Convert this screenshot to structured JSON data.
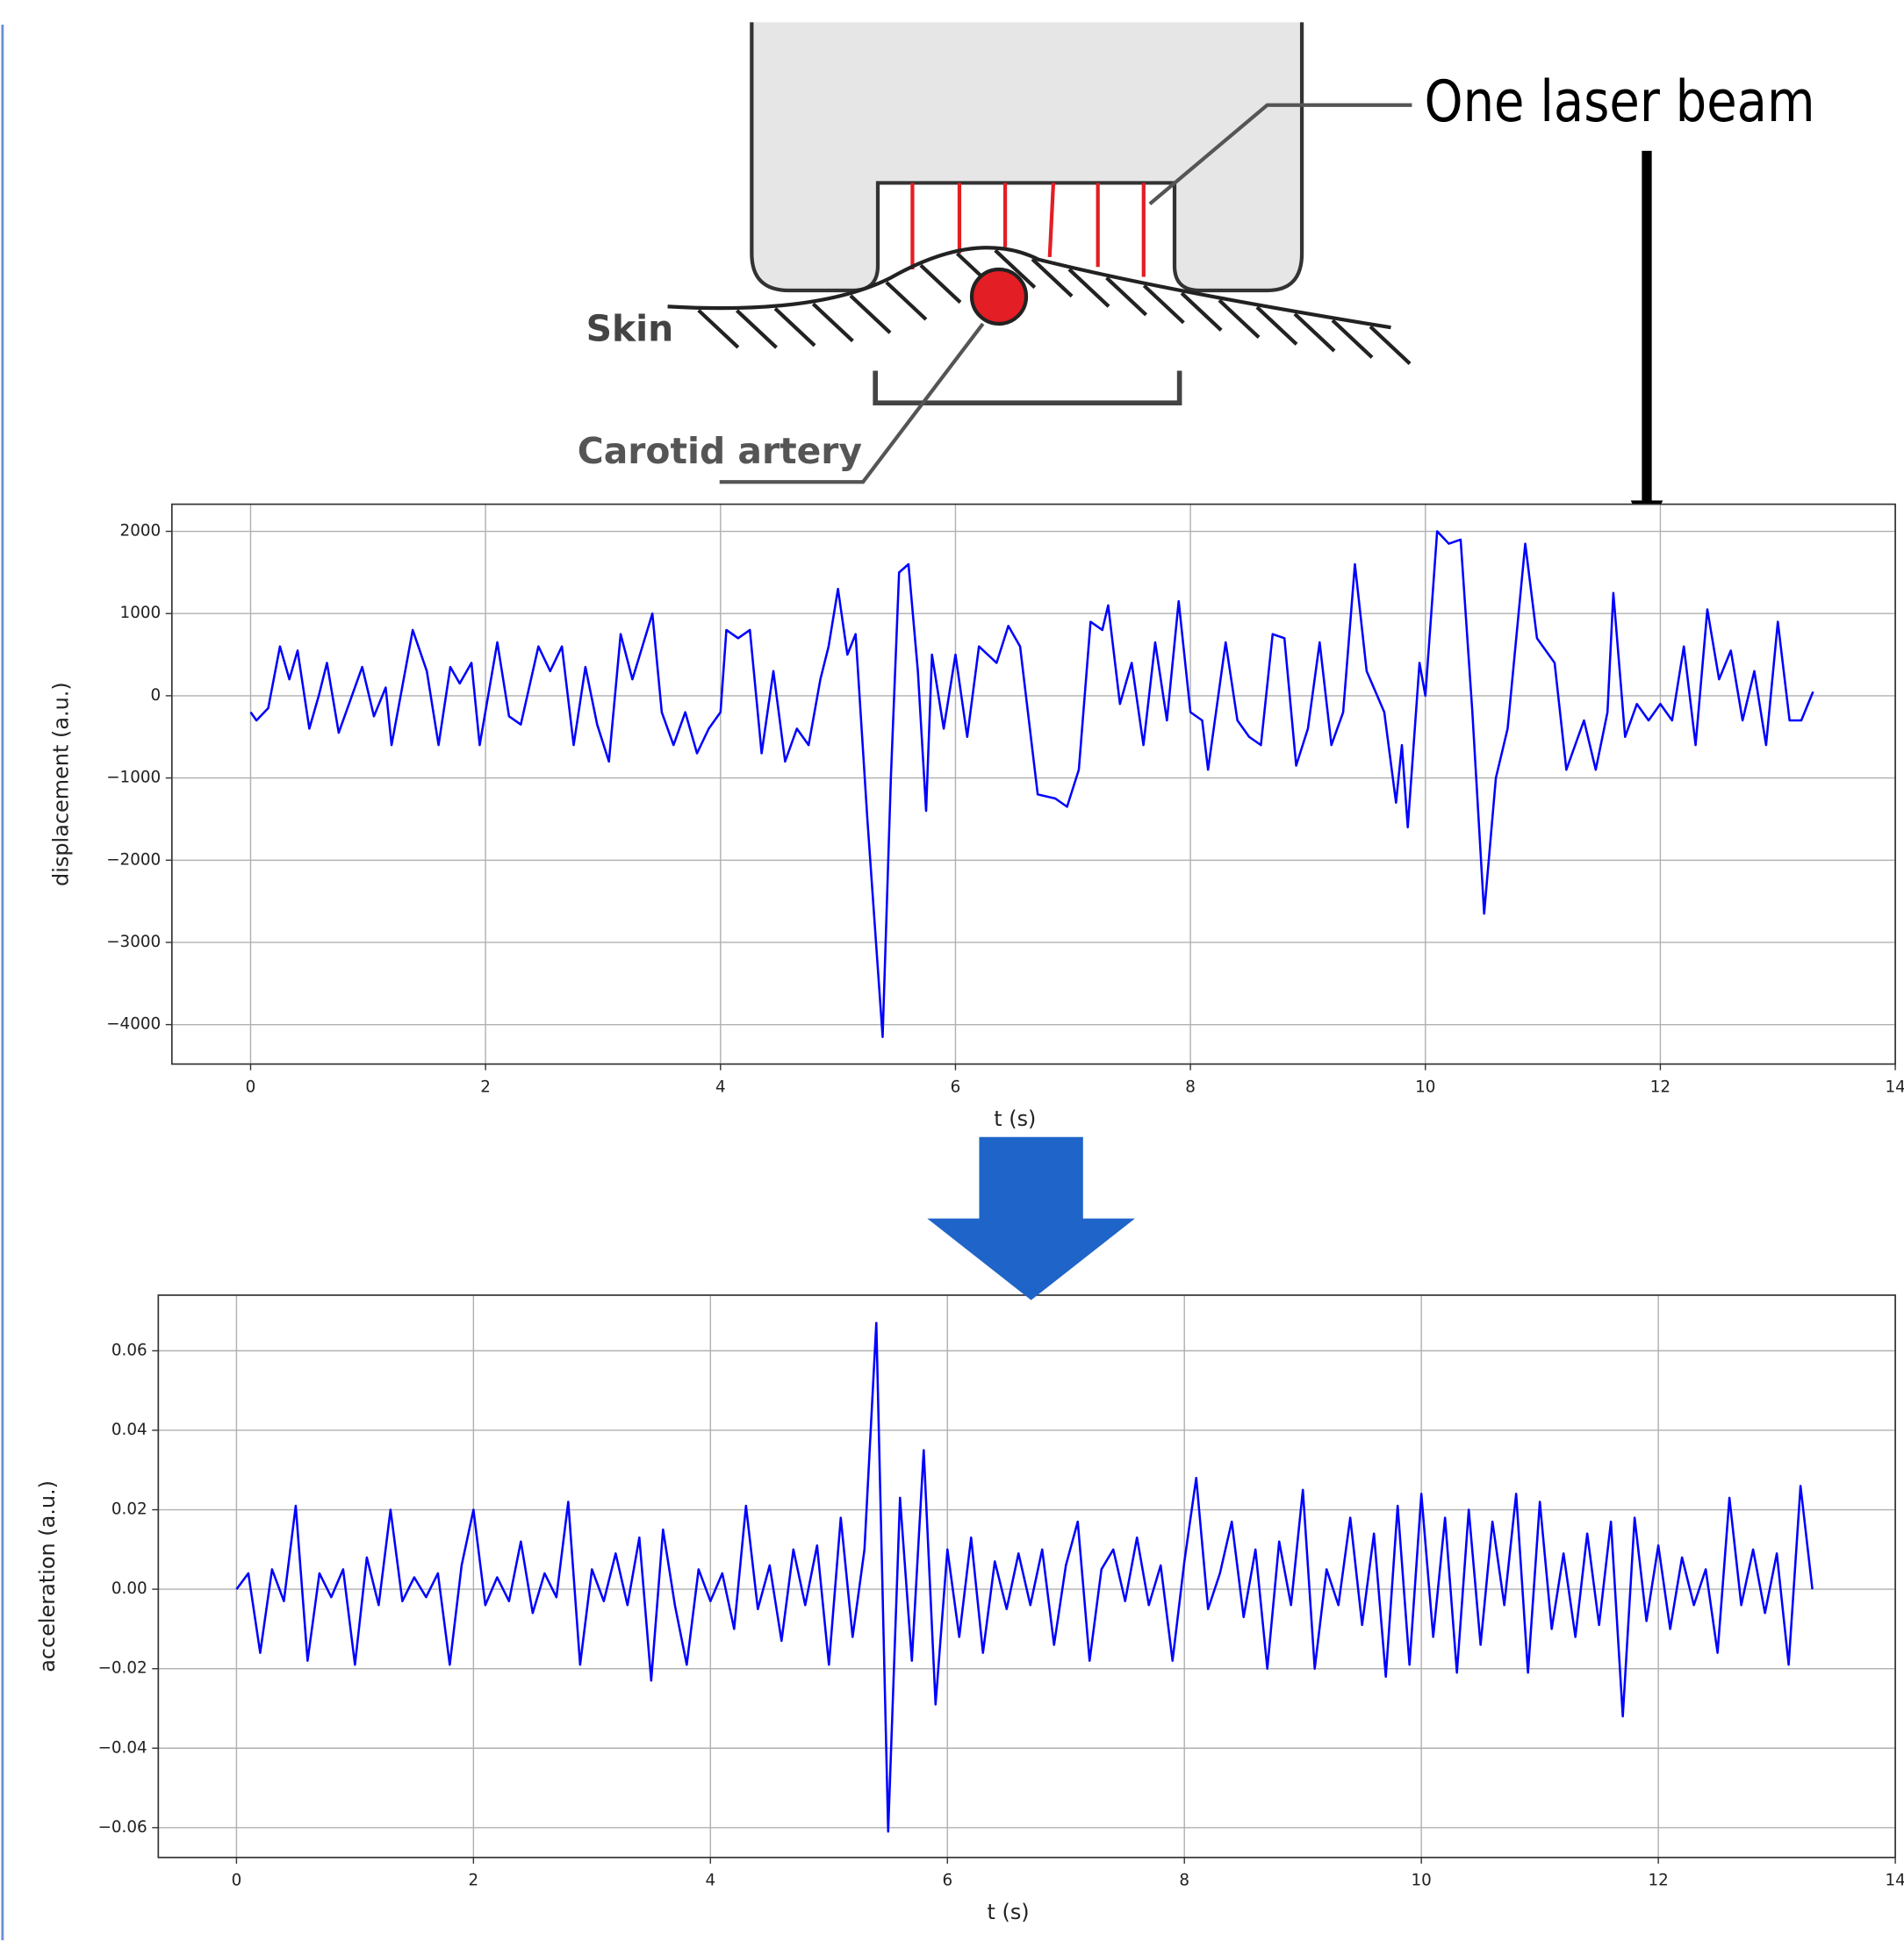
{
  "diagram": {
    "laser_label": "One laser beam",
    "skin_label": "Skin",
    "artery_label": "Carotid artery"
  },
  "chart_data": [
    {
      "type": "line",
      "xlabel": "t (s)",
      "ylabel": "displacement (a.u.)",
      "color": "#0000ff",
      "grid": true,
      "xlim": [
        -0.67,
        14
      ],
      "ylim": [
        -4480,
        2330
      ],
      "xticks": [
        0,
        2,
        4,
        6,
        8,
        10,
        12,
        14
      ],
      "yticks": [
        2000,
        1000,
        0,
        {
          "value": -1000,
          "label": "−1000"
        },
        {
          "value": -2000,
          "label": "−2000"
        },
        {
          "value": -3000,
          "label": "−3000"
        },
        {
          "value": -4000,
          "label": "−4000"
        }
      ],
      "x": [
        0,
        0.05,
        0.15,
        0.25,
        0.33,
        0.4,
        0.5,
        0.58,
        0.65,
        0.75,
        0.85,
        0.95,
        1.05,
        1.15,
        1.2,
        1.38,
        1.5,
        1.6,
        1.7,
        1.78,
        1.88,
        1.95,
        2.1,
        2.2,
        2.3,
        2.45,
        2.55,
        2.65,
        2.75,
        2.85,
        2.95,
        3.05,
        3.15,
        3.25,
        3.42,
        3.5,
        3.6,
        3.7,
        3.8,
        3.9,
        4.0,
        4.05,
        4.15,
        4.25,
        4.35,
        4.45,
        4.55,
        4.65,
        4.75,
        4.85,
        4.92,
        5.0,
        5.08,
        5.15,
        5.25,
        5.38,
        5.45,
        5.52,
        5.6,
        5.68,
        5.75,
        5.8,
        5.9,
        6.0,
        6.1,
        6.2,
        6.35,
        6.45,
        6.55,
        6.7,
        6.85,
        6.95,
        7.05,
        7.15,
        7.25,
        7.3,
        7.4,
        7.5,
        7.6,
        7.7,
        7.8,
        7.9,
        8.0,
        8.1,
        8.15,
        8.3,
        8.4,
        8.5,
        8.6,
        8.7,
        8.8,
        8.9,
        9.0,
        9.1,
        9.2,
        9.3,
        9.4,
        9.5,
        9.65,
        9.75,
        9.8,
        9.85,
        9.95,
        10.0,
        10.1,
        10.2,
        10.3,
        10.4,
        10.5,
        10.6,
        10.7,
        10.85,
        10.95,
        11.1,
        11.2,
        11.3,
        11.35,
        11.45,
        11.55,
        11.6,
        11.7,
        11.8,
        11.9,
        12.0,
        12.1,
        12.2,
        12.3,
        12.4,
        12.5,
        12.6,
        12.7,
        12.8,
        12.9,
        13.0,
        13.1,
        13.2,
        13.3
      ],
      "values": [
        -200,
        -300,
        -150,
        600,
        200,
        550,
        -400,
        0,
        400,
        -450,
        -50,
        350,
        -250,
        100,
        -600,
        800,
        300,
        -600,
        350,
        150,
        400,
        -600,
        650,
        -250,
        -350,
        600,
        300,
        600,
        -600,
        350,
        -350,
        -800,
        750,
        200,
        1000,
        -200,
        -600,
        -200,
        -700,
        -400,
        -200,
        800,
        700,
        800,
        -700,
        300,
        -800,
        -400,
        -600,
        200,
        600,
        1300,
        500,
        750,
        -1500,
        -4150,
        -1000,
        1500,
        1600,
        300,
        -1400,
        500,
        -400,
        500,
        -500,
        600,
        400,
        850,
        600,
        -1200,
        -1250,
        -1350,
        -900,
        900,
        800,
        1100,
        -100,
        400,
        -600,
        650,
        -300,
        1150,
        -200,
        -300,
        -900,
        650,
        -300,
        -500,
        -600,
        750,
        700,
        -850,
        -400,
        650,
        -600,
        -200,
        1600,
        300,
        -200,
        -1300,
        -600,
        -1600,
        400,
        0,
        2000,
        1850,
        1900,
        -200,
        -2650,
        -1000,
        -400,
        1850,
        700,
        400,
        -900,
        -500,
        -300,
        -900,
        -200,
        1250,
        -500,
        -100,
        -300,
        -100,
        -300,
        600,
        -600,
        1050,
        200,
        550,
        -300,
        300,
        -600,
        900,
        -300,
        -300,
        50
      ]
    },
    {
      "type": "line",
      "xlabel": "t (s)",
      "ylabel": "acceleration (a.u.)",
      "color": "#0000ff",
      "grid": true,
      "xlim": [
        -0.66,
        14
      ],
      "ylim": [
        -0.0675,
        0.074
      ],
      "xticks": [
        0,
        2,
        4,
        6,
        8,
        10,
        12,
        14
      ],
      "yticks": [
        0.06,
        0.04,
        0.02,
        {
          "value": 0,
          "label": "0.00"
        },
        {
          "value": -0.02,
          "label": "−0.02"
        },
        {
          "value": -0.04,
          "label": "−0.04"
        },
        {
          "value": -0.06,
          "label": "−0.06"
        }
      ],
      "x": [
        0,
        0.1,
        0.2,
        0.3,
        0.4,
        0.5,
        0.6,
        0.7,
        0.8,
        0.9,
        1.0,
        1.1,
        1.2,
        1.3,
        1.4,
        1.5,
        1.6,
        1.7,
        1.8,
        1.9,
        2.0,
        2.1,
        2.2,
        2.3,
        2.4,
        2.5,
        2.6,
        2.7,
        2.8,
        2.9,
        3.0,
        3.1,
        3.2,
        3.3,
        3.4,
        3.5,
        3.6,
        3.7,
        3.8,
        3.9,
        4.0,
        4.1,
        4.2,
        4.3,
        4.4,
        4.5,
        4.6,
        4.7,
        4.8,
        4.9,
        5.0,
        5.1,
        5.2,
        5.3,
        5.4,
        5.5,
        5.6,
        5.7,
        5.8,
        5.9,
        6.0,
        6.1,
        6.2,
        6.3,
        6.4,
        6.5,
        6.6,
        6.7,
        6.8,
        6.9,
        7.0,
        7.1,
        7.2,
        7.3,
        7.4,
        7.5,
        7.6,
        7.7,
        7.8,
        7.9,
        8.0,
        8.1,
        8.2,
        8.3,
        8.4,
        8.5,
        8.6,
        8.7,
        8.8,
        8.9,
        9.0,
        9.1,
        9.2,
        9.3,
        9.4,
        9.5,
        9.6,
        9.7,
        9.8,
        9.9,
        10.0,
        10.1,
        10.2,
        10.3,
        10.4,
        10.5,
        10.6,
        10.7,
        10.8,
        10.9,
        11.0,
        11.1,
        11.2,
        11.3,
        11.4,
        11.5,
        11.6,
        11.7,
        11.8,
        11.9,
        12.0,
        12.1,
        12.2,
        12.3,
        12.4,
        12.5,
        12.6,
        12.7,
        12.8,
        12.9,
        13.0,
        13.1,
        13.2,
        13.3
      ],
      "values": [
        0,
        0.004,
        -0.016,
        0.005,
        -0.003,
        0.021,
        -0.018,
        0.004,
        -0.002,
        0.005,
        -0.019,
        0.008,
        -0.004,
        0.02,
        -0.003,
        0.003,
        -0.002,
        0.004,
        -0.019,
        0.006,
        0.02,
        -0.004,
        0.003,
        -0.003,
        0.012,
        -0.006,
        0.004,
        -0.002,
        0.022,
        -0.019,
        0.005,
        -0.003,
        0.009,
        -0.004,
        0.013,
        -0.023,
        0.015,
        -0.004,
        -0.019,
        0.005,
        -0.003,
        0.004,
        -0.01,
        0.021,
        -0.005,
        0.006,
        -0.013,
        0.01,
        -0.004,
        0.011,
        -0.019,
        0.018,
        -0.012,
        0.01,
        0.067,
        -0.061,
        0.023,
        -0.018,
        0.035,
        -0.029,
        0.01,
        -0.012,
        0.013,
        -0.016,
        0.007,
        -0.005,
        0.009,
        -0.004,
        0.01,
        -0.014,
        0.006,
        0.017,
        -0.018,
        0.005,
        0.01,
        -0.003,
        0.013,
        -0.004,
        0.006,
        -0.018,
        0.007,
        0.028,
        -0.005,
        0.004,
        0.017,
        -0.007,
        0.01,
        -0.02,
        0.012,
        -0.004,
        0.025,
        -0.02,
        0.005,
        -0.004,
        0.018,
        -0.009,
        0.014,
        -0.022,
        0.021,
        -0.019,
        0.024,
        -0.012,
        0.018,
        -0.021,
        0.02,
        -0.014,
        0.017,
        -0.004,
        0.024,
        -0.021,
        0.022,
        -0.01,
        0.009,
        -0.012,
        0.014,
        -0.009,
        0.017,
        -0.032,
        0.018,
        -0.008,
        0.011,
        -0.01,
        0.008,
        -0.004,
        0.005,
        -0.016,
        0.023,
        -0.004,
        0.01,
        -0.006,
        0.009,
        -0.019,
        0.026,
        0
      ]
    }
  ]
}
